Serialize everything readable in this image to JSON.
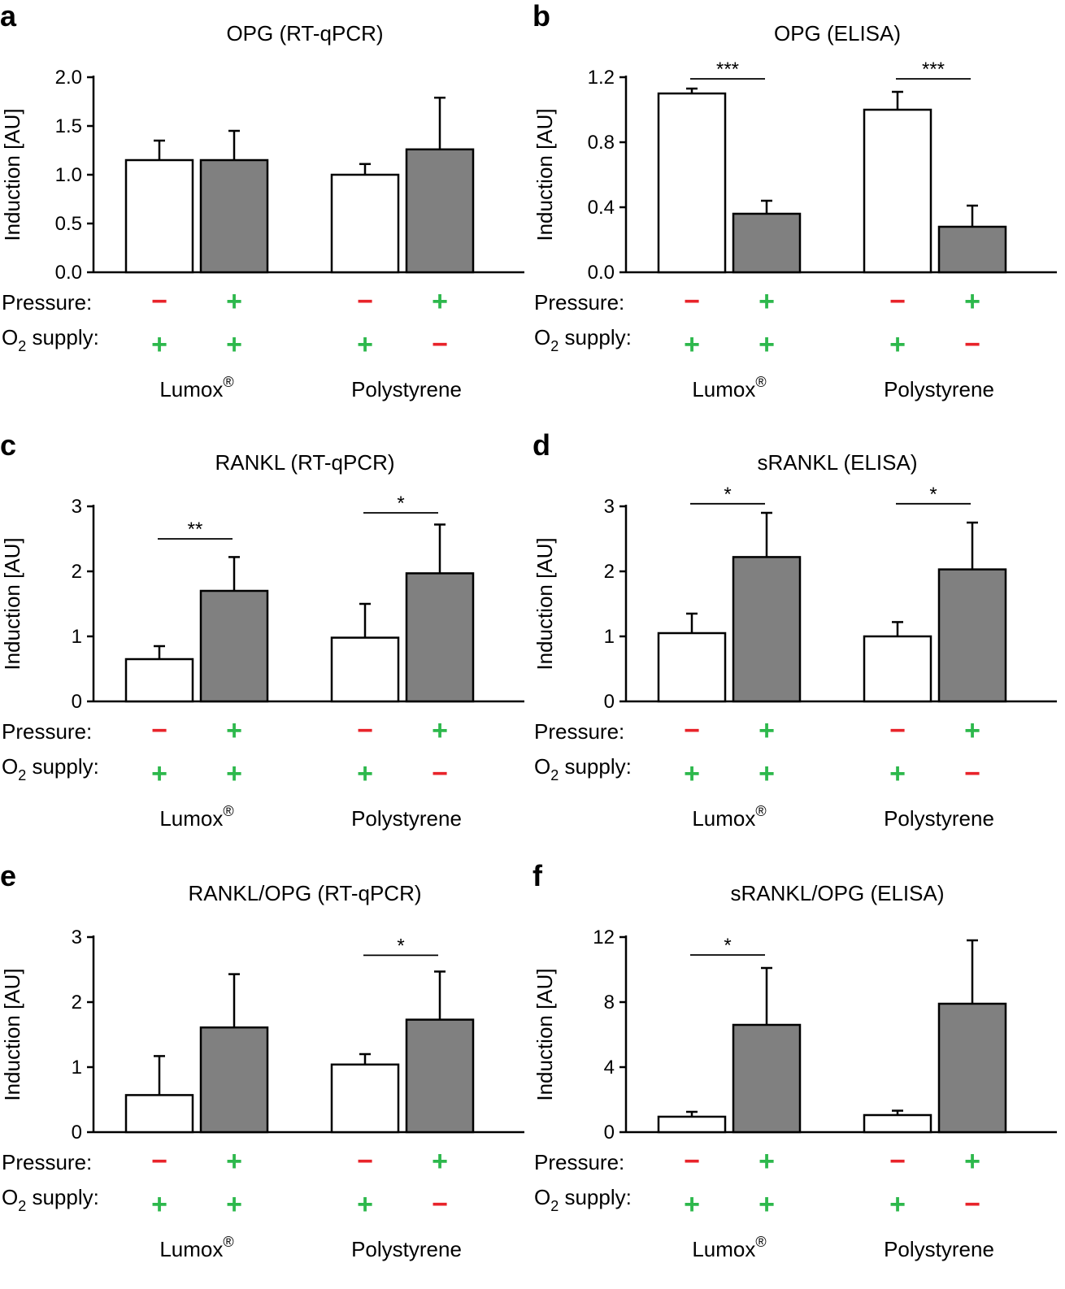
{
  "labels": {
    "pressure": "Pressure:",
    "o2_prefix": "O",
    "o2_sub": "2",
    "o2_suffix": " supply:",
    "group_lumox": "Lumox",
    "group_lumox_reg": "®",
    "group_poly": "Polystyrene",
    "plus": "+",
    "minus": "−"
  },
  "colors": {
    "plus": "#2db84c",
    "minus": "#e8232a",
    "bar_open": "#ffffff",
    "bar_filled": "#808080"
  },
  "conditions": {
    "pressure": [
      "-",
      "+",
      "-",
      "+"
    ],
    "o2": [
      "+",
      "+",
      "+",
      "-"
    ]
  },
  "chart_data": [
    {
      "panel": "a",
      "type": "bar",
      "title": "OPG (RT-qPCR)",
      "ylabel": "Induction [AU]",
      "ylim": [
        0,
        2.0
      ],
      "yticks": [
        "0.0",
        "0.5",
        "1.0",
        "1.5",
        "2.0"
      ],
      "categories": [
        "Lumox pressure−",
        "Lumox pressure+",
        "Polystyrene pressure−",
        "Polystyrene pressure+"
      ],
      "values": [
        1.15,
        1.15,
        1.0,
        1.26
      ],
      "errors": [
        0.2,
        0.3,
        0.11,
        0.53
      ],
      "fills": [
        "open",
        "filled",
        "open",
        "filled"
      ],
      "significance": []
    },
    {
      "panel": "b",
      "type": "bar",
      "title": "OPG (ELISA)",
      "ylabel": "Induction [AU]",
      "ylim": [
        0,
        1.2
      ],
      "yticks": [
        "0.0",
        "0.4",
        "0.8",
        "1.2"
      ],
      "categories": [
        "Lumox pressure−",
        "Lumox pressure+",
        "Polystyrene pressure−",
        "Polystyrene pressure+"
      ],
      "values": [
        1.1,
        0.36,
        1.0,
        0.28
      ],
      "errors": [
        0.03,
        0.08,
        0.11,
        0.13
      ],
      "fills": [
        "open",
        "filled",
        "open",
        "filled"
      ],
      "significance": [
        {
          "from": 0,
          "to": 1,
          "level": 1.19,
          "label": "***"
        },
        {
          "from": 2,
          "to": 3,
          "level": 1.19,
          "label": "***"
        }
      ]
    },
    {
      "panel": "c",
      "type": "bar",
      "title": "RANKL (RT-qPCR)",
      "ylabel": "Induction [AU]",
      "ylim": [
        0,
        3
      ],
      "yticks": [
        "0",
        "1",
        "2",
        "3"
      ],
      "categories": [
        "Lumox pressure−",
        "Lumox pressure+",
        "Polystyrene pressure−",
        "Polystyrene pressure+"
      ],
      "values": [
        0.65,
        1.7,
        0.98,
        1.97
      ],
      "errors": [
        0.2,
        0.52,
        0.52,
        0.75
      ],
      "fills": [
        "open",
        "filled",
        "open",
        "filled"
      ],
      "significance": [
        {
          "from": 0,
          "to": 1,
          "level": 2.5,
          "label": "**"
        },
        {
          "from": 2,
          "to": 3,
          "level": 2.9,
          "label": "*"
        }
      ]
    },
    {
      "panel": "d",
      "type": "bar",
      "title": "sRANKL (ELISA)",
      "ylabel": "Induction [AU]",
      "ylim": [
        0,
        3
      ],
      "yticks": [
        "0",
        "1",
        "2",
        "3"
      ],
      "categories": [
        "Lumox pressure−",
        "Lumox pressure+",
        "Polystyrene pressure−",
        "Polystyrene pressure+"
      ],
      "values": [
        1.05,
        2.22,
        1.0,
        2.03
      ],
      "errors": [
        0.3,
        0.68,
        0.22,
        0.72
      ],
      "fills": [
        "open",
        "filled",
        "open",
        "filled"
      ],
      "significance": [
        {
          "from": 0,
          "to": 1,
          "level": 3.04,
          "label": "*"
        },
        {
          "from": 2,
          "to": 3,
          "level": 3.04,
          "label": "*"
        }
      ]
    },
    {
      "panel": "e",
      "type": "bar",
      "title": "RANKL/OPG (RT-qPCR)",
      "ylabel": "Induction [AU]",
      "ylim": [
        0,
        3
      ],
      "yticks": [
        "0",
        "1",
        "2",
        "3"
      ],
      "categories": [
        "Lumox pressure−",
        "Lumox pressure+",
        "Polystyrene pressure−",
        "Polystyrene pressure+"
      ],
      "values": [
        0.57,
        1.61,
        1.04,
        1.73
      ],
      "errors": [
        0.6,
        0.82,
        0.16,
        0.74
      ],
      "fills": [
        "open",
        "filled",
        "open",
        "filled"
      ],
      "significance": [
        {
          "from": 2,
          "to": 3,
          "level": 2.72,
          "label": "*"
        }
      ]
    },
    {
      "panel": "f",
      "type": "bar",
      "title": "sRANKL/OPG (ELISA)",
      "ylabel": "Induction [AU]",
      "ylim": [
        0,
        12
      ],
      "yticks": [
        "0",
        "4",
        "8",
        "12"
      ],
      "categories": [
        "Lumox pressure−",
        "Lumox pressure+",
        "Polystyrene pressure−",
        "Polystyrene pressure+"
      ],
      "values": [
        0.95,
        6.6,
        1.05,
        7.9
      ],
      "errors": [
        0.3,
        3.5,
        0.27,
        3.9
      ],
      "fills": [
        "open",
        "filled",
        "open",
        "filled"
      ],
      "significance": [
        {
          "from": 0,
          "to": 1,
          "level": 10.9,
          "label": "*"
        }
      ]
    }
  ]
}
